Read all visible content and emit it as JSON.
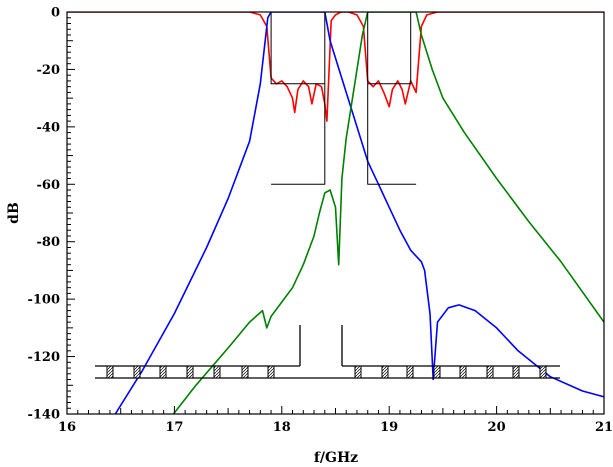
{
  "chart_data": {
    "type": "line",
    "xlabel": "f/GHz",
    "ylabel": "dB",
    "xlim": [
      16,
      21
    ],
    "ylim": [
      -140,
      0
    ],
    "x_ticks": [
      16,
      17,
      18,
      19,
      20,
      21
    ],
    "y_ticks": [
      0,
      -20,
      -40,
      -60,
      -80,
      -100,
      -120,
      -140
    ],
    "grid": false,
    "legend": "none",
    "series": [
      {
        "color": "#ff0000",
        "points": [
          [
            16,
            0
          ],
          [
            17.7,
            0
          ],
          [
            17.8,
            -1
          ],
          [
            17.86,
            -5
          ],
          [
            17.9,
            -23
          ],
          [
            17.95,
            -25
          ],
          [
            18.0,
            -24
          ],
          [
            18.05,
            -26
          ],
          [
            18.1,
            -30
          ],
          [
            18.12,
            -35
          ],
          [
            18.15,
            -27
          ],
          [
            18.2,
            -24
          ],
          [
            18.25,
            -26
          ],
          [
            18.28,
            -32
          ],
          [
            18.32,
            -25
          ],
          [
            18.37,
            -26
          ],
          [
            18.4,
            -32
          ],
          [
            18.42,
            -38
          ],
          [
            18.46,
            -3
          ],
          [
            18.5,
            -1
          ],
          [
            18.55,
            0
          ],
          [
            18.62,
            0
          ],
          [
            18.7,
            -1
          ],
          [
            18.76,
            -5
          ],
          [
            18.8,
            -24
          ],
          [
            18.85,
            -26
          ],
          [
            18.9,
            -24
          ],
          [
            18.95,
            -28
          ],
          [
            19.0,
            -33
          ],
          [
            19.03,
            -27
          ],
          [
            19.08,
            -24
          ],
          [
            19.12,
            -27
          ],
          [
            19.15,
            -32
          ],
          [
            19.2,
            -24
          ],
          [
            19.25,
            -28
          ],
          [
            19.3,
            -5
          ],
          [
            19.35,
            -1
          ],
          [
            19.45,
            0
          ],
          [
            21,
            0
          ]
        ]
      },
      {
        "color": "#0000ff",
        "points": [
          [
            16.45,
            -140
          ],
          [
            16.7,
            -125
          ],
          [
            17.0,
            -105
          ],
          [
            17.3,
            -82
          ],
          [
            17.5,
            -65
          ],
          [
            17.7,
            -45
          ],
          [
            17.8,
            -25
          ],
          [
            17.87,
            -2
          ],
          [
            17.9,
            0
          ],
          [
            18.4,
            0
          ],
          [
            18.45,
            -10
          ],
          [
            18.6,
            -28
          ],
          [
            18.7,
            -40
          ],
          [
            18.8,
            -52
          ],
          [
            18.9,
            -60
          ],
          [
            19.0,
            -68
          ],
          [
            19.1,
            -76
          ],
          [
            19.2,
            -83
          ],
          [
            19.3,
            -87
          ],
          [
            19.33,
            -90
          ],
          [
            19.38,
            -105
          ],
          [
            19.41,
            -128
          ],
          [
            19.45,
            -108
          ],
          [
            19.55,
            -103
          ],
          [
            19.65,
            -102
          ],
          [
            19.8,
            -104
          ],
          [
            20.0,
            -110
          ],
          [
            20.2,
            -118
          ],
          [
            20.5,
            -127
          ],
          [
            20.8,
            -132
          ],
          [
            21,
            -134
          ]
        ]
      },
      {
        "color": "#008000",
        "points": [
          [
            16.95,
            -142
          ],
          [
            17.2,
            -130
          ],
          [
            17.5,
            -117
          ],
          [
            17.7,
            -108
          ],
          [
            17.82,
            -104
          ],
          [
            17.86,
            -110
          ],
          [
            17.9,
            -106
          ],
          [
            18.0,
            -101
          ],
          [
            18.1,
            -96
          ],
          [
            18.2,
            -88
          ],
          [
            18.3,
            -78
          ],
          [
            18.35,
            -70
          ],
          [
            18.4,
            -63
          ],
          [
            18.45,
            -62
          ],
          [
            18.5,
            -68
          ],
          [
            18.53,
            -88
          ],
          [
            18.56,
            -58
          ],
          [
            18.6,
            -44
          ],
          [
            18.65,
            -32
          ],
          [
            18.7,
            -20
          ],
          [
            18.75,
            -8
          ],
          [
            18.8,
            0
          ],
          [
            19.25,
            0
          ],
          [
            19.3,
            -8
          ],
          [
            19.4,
            -20
          ],
          [
            19.5,
            -30
          ],
          [
            19.7,
            -42
          ],
          [
            20.0,
            -58
          ],
          [
            20.3,
            -73
          ],
          [
            20.6,
            -87
          ],
          [
            21,
            -108
          ]
        ]
      },
      {
        "color": "#000000",
        "points": [
          [
            17.9,
            -60
          ],
          [
            18.4,
            -60
          ],
          [
            18.4,
            0
          ],
          [
            17.9,
            0
          ],
          [
            17.9,
            -25
          ],
          [
            18.4,
            -25
          ]
        ]
      },
      {
        "color": "#000000",
        "points": [
          [
            18.8,
            -60
          ],
          [
            18.8,
            0
          ],
          [
            19.2,
            0
          ],
          [
            19.2,
            -25
          ],
          [
            18.8,
            -25
          ],
          [
            18.8,
            -60
          ],
          [
            19.25,
            -60
          ]
        ]
      }
    ]
  }
}
